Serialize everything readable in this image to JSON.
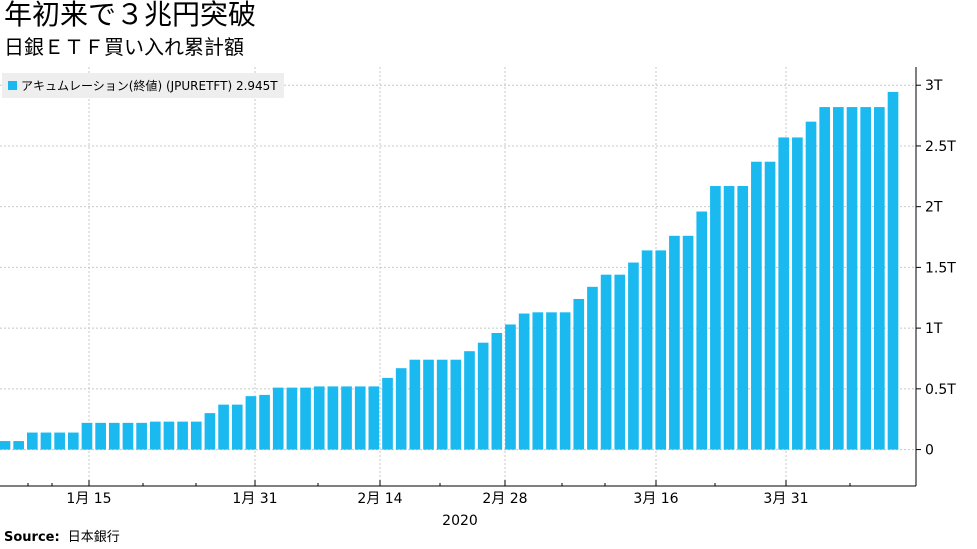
{
  "title": "年初来で３兆円突破",
  "subtitle": "日銀ＥＴＦ買い入れ累計額",
  "source_label": "Source:",
  "source_value": "日本銀行",
  "colors": {
    "bar": "#1ab9f0",
    "grid": "#c8c8c8",
    "axis": "#000000",
    "legend_bg": "#eeeeee"
  },
  "chart_data": {
    "type": "bar",
    "legend": "アキュムレーション(終値) (JPURETFT) 2.945T",
    "x_tick_labels": [
      "1月 15",
      "1月 31",
      "2月 14",
      "2月 28",
      "3月 16",
      "3月 31"
    ],
    "x_group_label": "2020",
    "y_tick_labels": [
      "0",
      "0.5T",
      "1T",
      "1.5T",
      "2T",
      "2.5T",
      "3T"
    ],
    "ylim": [
      -0.3,
      3.15
    ],
    "yticks": [
      0,
      0.5,
      1,
      1.5,
      2,
      2.5,
      3
    ],
    "grid": true,
    "values": [
      0.07,
      0.07,
      0.14,
      0.14,
      0.14,
      0.14,
      0.22,
      0.22,
      0.22,
      0.22,
      0.22,
      0.23,
      0.23,
      0.23,
      0.23,
      0.3,
      0.37,
      0.37,
      0.44,
      0.45,
      0.51,
      0.51,
      0.51,
      0.52,
      0.52,
      0.52,
      0.52,
      0.52,
      0.59,
      0.67,
      0.74,
      0.74,
      0.74,
      0.74,
      0.81,
      0.88,
      0.96,
      1.03,
      1.12,
      1.13,
      1.13,
      1.13,
      1.24,
      1.34,
      1.44,
      1.44,
      1.54,
      1.64,
      1.64,
      1.76,
      1.76,
      1.96,
      2.17,
      2.17,
      2.17,
      2.37,
      2.37,
      2.57,
      2.57,
      2.7,
      2.82,
      2.82,
      2.82,
      2.82,
      2.82,
      2.945
    ]
  }
}
